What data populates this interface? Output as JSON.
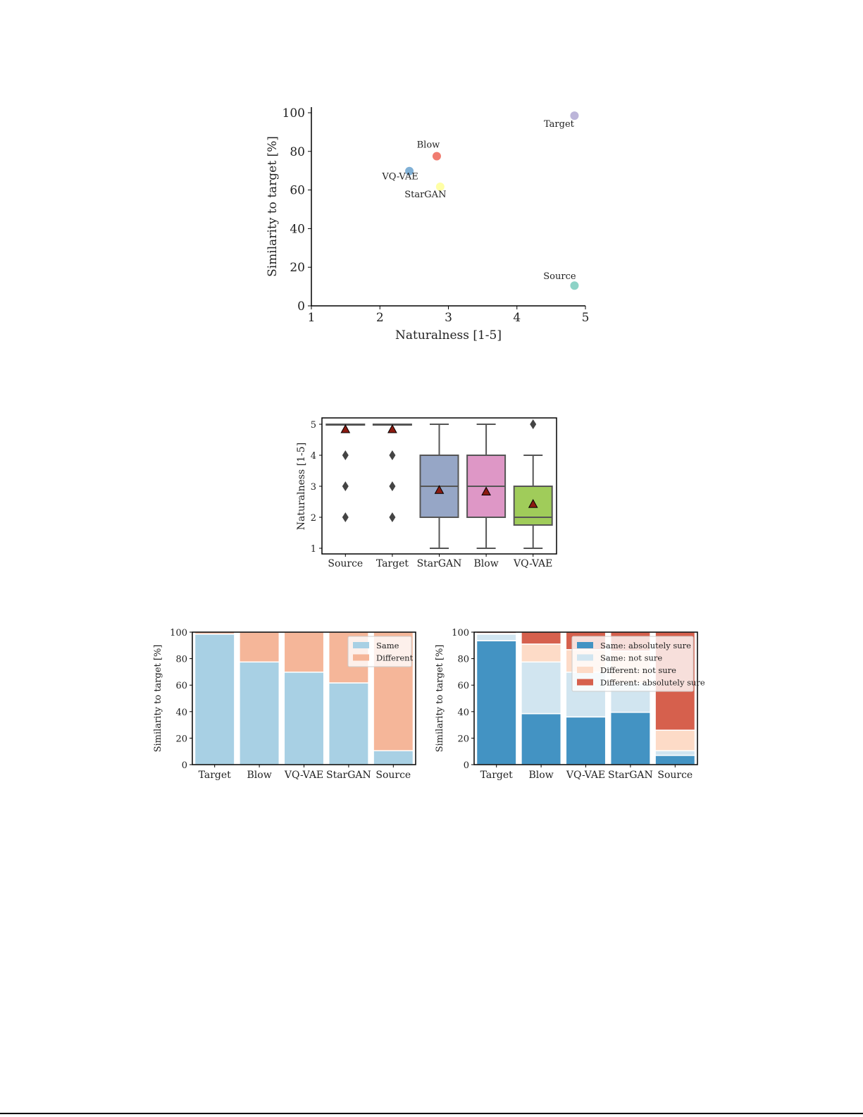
{
  "chart_data": [
    {
      "type": "scatter",
      "xlabel": "Naturalness [1-5]",
      "ylabel": "Similarity to target [%]",
      "xlim": [
        1,
        5
      ],
      "ylim": [
        0,
        100
      ],
      "xticks": [
        "1",
        "2",
        "3",
        "4",
        "5"
      ],
      "yticks": [
        "0",
        "20",
        "40",
        "60",
        "80",
        "100"
      ],
      "points": [
        {
          "label": "Target",
          "x": 4.84,
          "y": 98.5,
          "color": "#bcb5d9"
        },
        {
          "label": "Blow",
          "x": 2.83,
          "y": 77.5,
          "color": "#f07c70"
        },
        {
          "label": "VQ-VAE",
          "x": 2.43,
          "y": 69.8,
          "color": "#80b0d6"
        },
        {
          "label": "StarGAN",
          "x": 2.88,
          "y": 61.7,
          "color": "#ffffa6"
        },
        {
          "label": "Source",
          "x": 4.84,
          "y": 10.5,
          "color": "#8dd3c7"
        }
      ],
      "grid": false
    },
    {
      "type": "box",
      "ylabel": "Naturalness [1-5]",
      "ylim": [
        1,
        5
      ],
      "yticks": [
        "1",
        "2",
        "3",
        "4",
        "5"
      ],
      "categories": [
        "Source",
        "Target",
        "StarGAN",
        "Blow",
        "VQ-VAE"
      ],
      "boxes": [
        {
          "category": "Source",
          "q1": 5,
          "median": 5,
          "q3": 5,
          "whisker_low": 5,
          "whisker_high": 5,
          "mean": 4.84,
          "outliers": [
            4,
            3,
            2
          ],
          "color": "#ffffff"
        },
        {
          "category": "Target",
          "q1": 5,
          "median": 5,
          "q3": 5,
          "whisker_low": 5,
          "whisker_high": 5,
          "mean": 4.84,
          "outliers": [
            4,
            3,
            2
          ],
          "color": "#ffffff"
        },
        {
          "category": "StarGAN",
          "q1": 2,
          "median": 3,
          "q3": 4,
          "whisker_low": 1,
          "whisker_high": 5,
          "mean": 2.88,
          "outliers": [],
          "color": "#96a6c6"
        },
        {
          "category": "Blow",
          "q1": 2,
          "median": 3,
          "q3": 4,
          "whisker_low": 1,
          "whisker_high": 5,
          "mean": 2.83,
          "outliers": [],
          "color": "#de97c6"
        },
        {
          "category": "VQ-VAE",
          "q1": 1.75,
          "median": 2,
          "q3": 3,
          "whisker_low": 1,
          "whisker_high": 4,
          "mean": 2.43,
          "outliers": [
            5
          ],
          "color": "#a0cc5a"
        }
      ]
    },
    {
      "type": "stacked-bar",
      "ylabel": "Similarity to target [%]",
      "ylim": [
        0,
        100
      ],
      "yticks": [
        "0",
        "20",
        "40",
        "60",
        "80",
        "100"
      ],
      "categories": [
        "Target",
        "Blow",
        "VQ-VAE",
        "StarGAN",
        "Source"
      ],
      "legend_position": "top-right",
      "series": [
        {
          "name": "Same",
          "color": "#a8d0e4",
          "values": [
            98.5,
            77.5,
            69.8,
            61.7,
            10.5
          ]
        },
        {
          "name": "Different",
          "color": "#f5b699",
          "values": [
            1.5,
            22.5,
            30.2,
            38.3,
            89.5
          ]
        }
      ]
    },
    {
      "type": "stacked-bar",
      "ylabel": "Similarity to target [%]",
      "ylim": [
        0,
        100
      ],
      "yticks": [
        "0",
        "20",
        "40",
        "60",
        "80",
        "100"
      ],
      "categories": [
        "Target",
        "Blow",
        "VQ-VAE",
        "StarGAN",
        "Source"
      ],
      "legend_position": "top-right",
      "series": [
        {
          "name": "Same: absolutely sure",
          "color": "#4393c3",
          "values": [
            93.5,
            38.5,
            36,
            39.5,
            7
          ]
        },
        {
          "name": "Same: not sure",
          "color": "#d1e5f0",
          "values": [
            5,
            39,
            33.8,
            22.2,
            3.5
          ]
        },
        {
          "name": "Different: not sure",
          "color": "#fddbc7",
          "values": [
            0.5,
            13.5,
            17,
            24,
            15.5
          ]
        },
        {
          "name": "Different: absolutely sure",
          "color": "#d6604d",
          "values": [
            1,
            9,
            13.2,
            14.3,
            74
          ]
        }
      ]
    }
  ]
}
